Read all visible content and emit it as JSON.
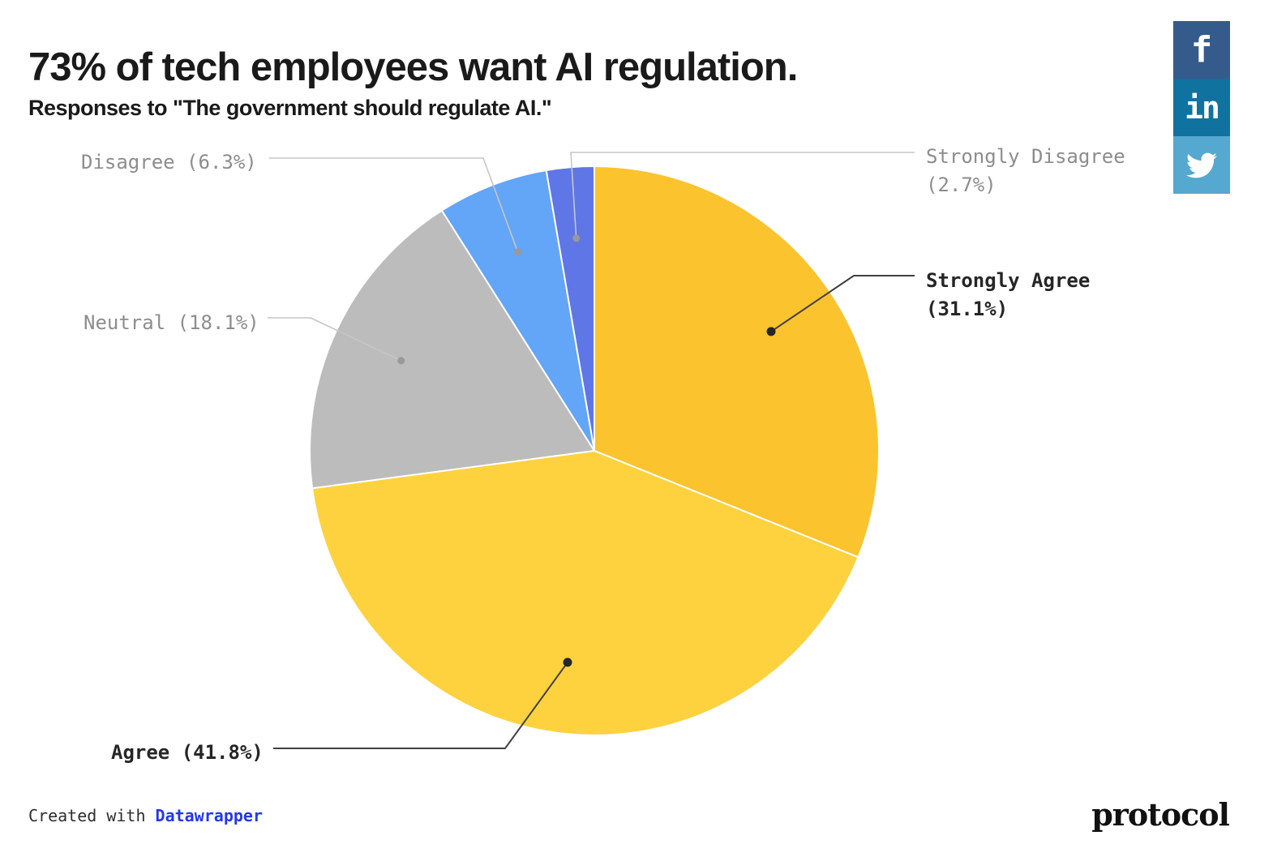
{
  "header": {
    "title": "73% of tech employees want AI regulation.",
    "subtitle": "Responses to \"The government should regulate AI.\""
  },
  "chart_data": {
    "type": "pie",
    "title": "73% of tech employees want AI regulation.",
    "subtitle": "Responses to \"The government should regulate AI.\"",
    "unit": "%",
    "start_angle_deg": 0,
    "direction": "clockwise",
    "legend_position": "callout-labels",
    "slices": [
      {
        "label": "Strongly Agree",
        "value": 31.1,
        "color": "#FBC32E",
        "emphasis": true
      },
      {
        "label": "Agree",
        "value": 41.8,
        "color": "#FDD23E",
        "emphasis": true
      },
      {
        "label": "Neutral",
        "value": 18.1,
        "color": "#BCBCBC",
        "emphasis": false
      },
      {
        "label": "Disagree",
        "value": 6.3,
        "color": "#63A5F7",
        "emphasis": false
      },
      {
        "label": "Strongly Disagree",
        "value": 2.7,
        "color": "#5F76E6",
        "emphasis": false
      }
    ]
  },
  "callouts": {
    "disagree": {
      "text": "Disagree (6.3%)"
    },
    "neutral": {
      "text": "Neutral (18.1%)"
    },
    "agree": {
      "text": "Agree (41.8%)"
    },
    "strongly_disagree": {
      "line1": "Strongly Disagree",
      "line2": "(2.7%)"
    },
    "strongly_agree": {
      "line1": "Strongly Agree",
      "line2": "(31.1%)"
    }
  },
  "share": {
    "facebook": {
      "label": "f",
      "color": "#355A8C"
    },
    "linkedin": {
      "label": "in",
      "color": "#10729F"
    },
    "twitter": {
      "color": "#55A8CF"
    }
  },
  "footer": {
    "attribution_prefix": "Created with ",
    "attribution_link": "Datawrapper",
    "logo_text": "protocol"
  },
  "colors": {
    "emphasis_line": "#404040",
    "emphasis_dot": "#262626",
    "muted_line": "#c6c6c6",
    "muted_dot": "#999999",
    "slice_border": "#ffffff"
  }
}
